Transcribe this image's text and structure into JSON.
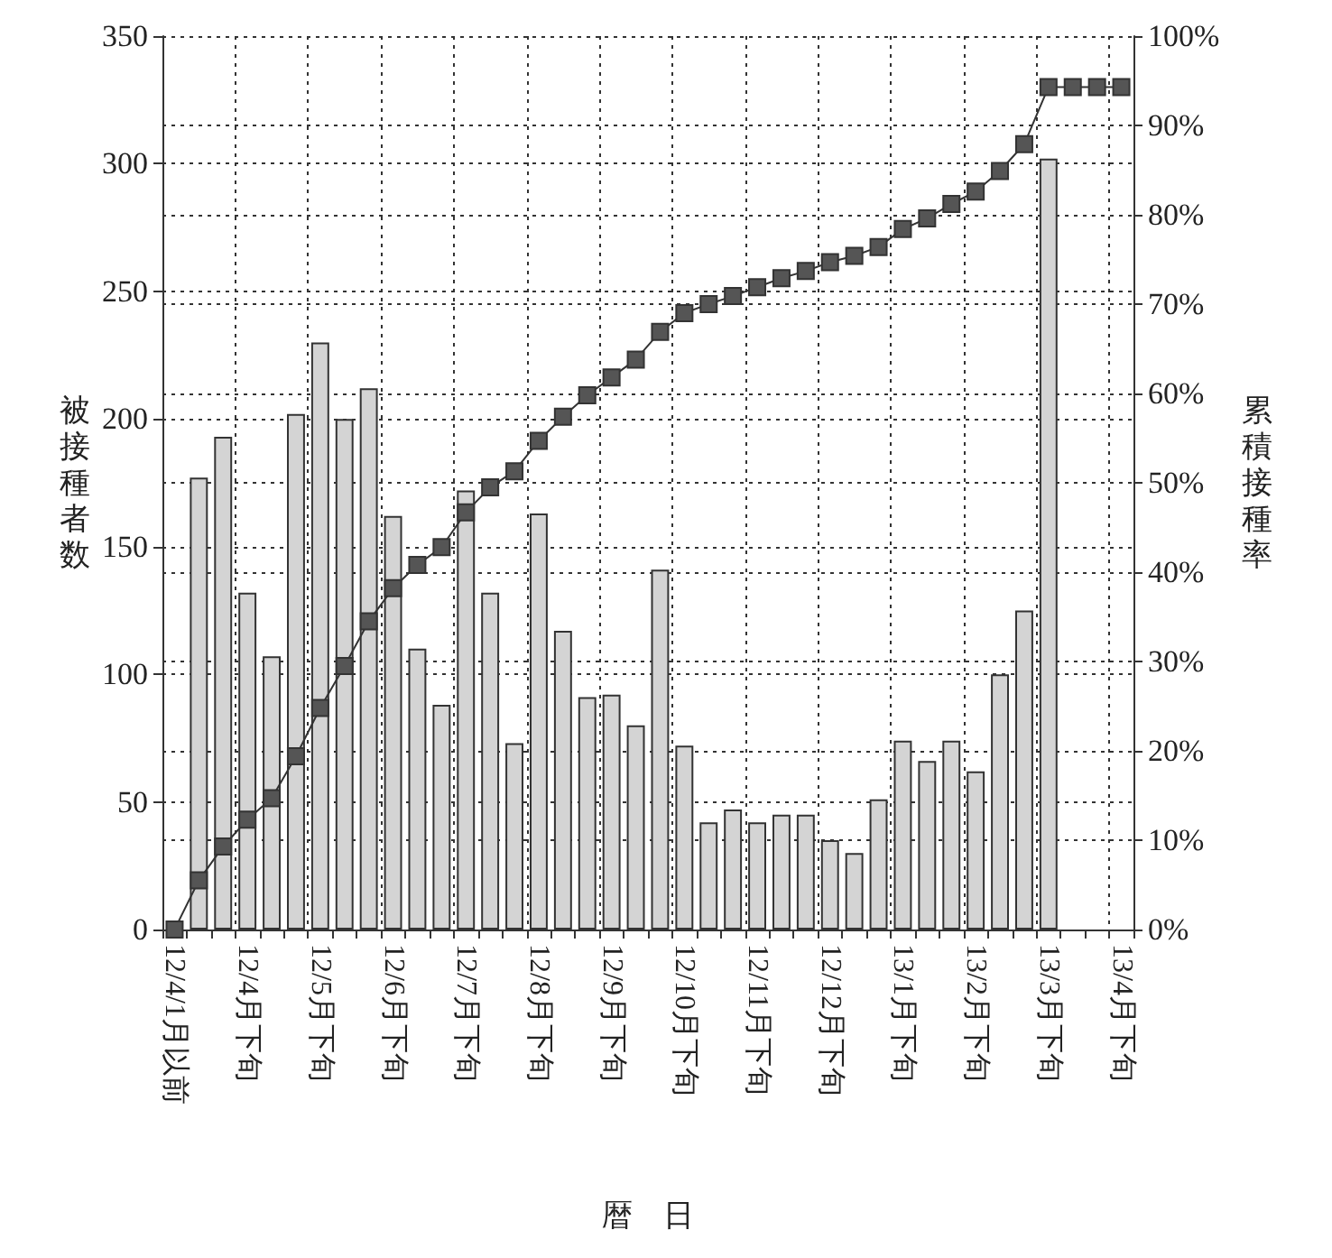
{
  "chart_data": {
    "type": "bar",
    "categories": [
      "12/4/1月以前",
      null,
      null,
      "12/4月下旬",
      null,
      null,
      "12/5月下旬",
      null,
      null,
      "12/6月下旬",
      null,
      null,
      "12/7月下旬",
      null,
      null,
      "12/8月下旬",
      null,
      null,
      "12/9月下旬",
      null,
      null,
      "12/10月下旬",
      null,
      null,
      "12/11月下旬",
      null,
      null,
      "12/12月下旬",
      null,
      null,
      "13/1月下旬",
      null,
      null,
      "13/2月下旬",
      null,
      null,
      "13/3月下旬",
      null,
      null,
      "13/4月下旬"
    ],
    "series": [
      {
        "color": "#d4d4d4",
        "values": [
          null,
          177,
          193,
          132,
          107,
          202,
          230,
          200,
          212,
          162,
          110,
          88,
          172,
          132,
          73,
          163,
          117,
          91,
          92,
          80,
          141,
          72,
          42,
          47,
          42,
          45,
          45,
          35,
          30,
          51,
          74,
          66,
          74,
          62,
          100,
          125,
          302,
          null,
          null,
          null
        ]
      },
      {
        "type": "line",
        "axis": "y2",
        "color": "#555555",
        "marker": "square",
        "values": [
          0,
          5.5,
          9.3,
          12.3,
          14.7,
          19.4,
          24.8,
          29.5,
          34.5,
          38.2,
          40.8,
          42.8,
          46.7,
          49.5,
          51.3,
          54.7,
          57.4,
          59.8,
          61.8,
          63.8,
          66.9,
          69,
          70,
          70.9,
          71.9,
          72.9,
          73.7,
          74.7,
          75.4,
          76.4,
          78.4,
          79.6,
          81.2,
          82.6,
          84.9,
          87.9,
          94.3,
          94.3,
          94.3,
          94.3
        ]
      }
    ],
    "xlabel": "暦　日",
    "ylabel": "被接種者数",
    "y2label": "累積接種率",
    "ylim": [
      0,
      350
    ],
    "yticks": [
      0,
      50,
      100,
      150,
      200,
      250,
      300,
      350
    ],
    "y2lim": [
      0,
      100
    ],
    "y2ticks": [
      {
        "value": 0,
        "label": "0%"
      },
      {
        "value": 10,
        "label": "10%"
      },
      {
        "value": 20,
        "label": "20%"
      },
      {
        "value": 30,
        "label": "30%"
      },
      {
        "value": 40,
        "label": "40%"
      },
      {
        "value": 50,
        "label": "50%"
      },
      {
        "value": 60,
        "label": "60%"
      },
      {
        "value": 70,
        "label": "70%"
      },
      {
        "value": 80,
        "label": "80%"
      },
      {
        "value": 90,
        "label": "90%"
      },
      {
        "value": 100,
        "label": "100%"
      }
    ],
    "grid": true
  }
}
